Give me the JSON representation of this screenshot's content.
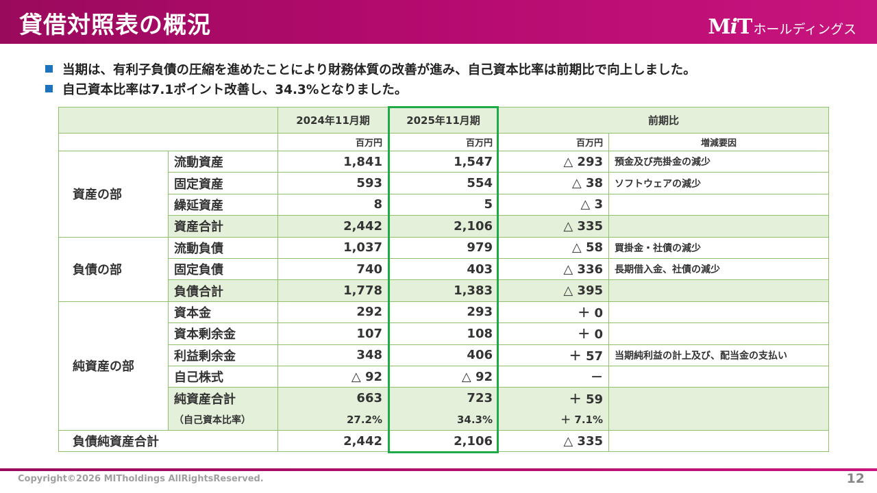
{
  "header": {
    "title": "貸借対照表の概況"
  },
  "logo": {
    "mark_m": "M",
    "mark_i": "i",
    "mark_t": "T",
    "rest": "ホールディングス"
  },
  "bullets": [
    "当期は、有利子負債の圧縮を進めたことにより財務体質の改善が進み、自己資本比率は前期比で向上しました。",
    "自己資本比率は7.1ポイント改善し、34.3%となりました。"
  ],
  "table": {
    "headers": {
      "prev": "2024年11月期",
      "curr": "2025年11月期",
      "diff": "前期比"
    },
    "units": {
      "prev": "百万円",
      "curr": "百万円",
      "diff": "百万円",
      "reason": "増減要因"
    },
    "sections": {
      "assets": "資産の部",
      "liabilities": "負債の部",
      "net_assets": "純資産の部",
      "total": "負債純資産合計"
    },
    "rows": [
      {
        "item": "流動資産",
        "prev": "1,841",
        "curr": "1,547",
        "diff": "△ 293",
        "reason": "預金及び売掛金の減少"
      },
      {
        "item": "固定資産",
        "prev": "593",
        "curr": "554",
        "diff": "△ 38",
        "reason": "ソフトウェアの減少"
      },
      {
        "item": "繰延資産",
        "prev": "8",
        "curr": "5",
        "diff": "△ 3",
        "reason": ""
      },
      {
        "item": "資産合計",
        "prev": "2,442",
        "curr": "2,106",
        "diff": "△ 335",
        "reason": ""
      },
      {
        "item": "流動負債",
        "prev": "1,037",
        "curr": "979",
        "diff": "△ 58",
        "reason": "買掛金・社債の減少"
      },
      {
        "item": "固定負債",
        "prev": "740",
        "curr": "403",
        "diff": "△ 336",
        "reason": "長期借入金、社債の減少"
      },
      {
        "item": "負債合計",
        "prev": "1,778",
        "curr": "1,383",
        "diff": "△ 395",
        "reason": ""
      },
      {
        "item": "資本金",
        "prev": "292",
        "curr": "293",
        "diff": "＋ 0",
        "reason": ""
      },
      {
        "item": "資本剰余金",
        "prev": "107",
        "curr": "108",
        "diff": "＋ 0",
        "reason": ""
      },
      {
        "item": "利益剰余金",
        "prev": "348",
        "curr": "406",
        "diff": "＋ 57",
        "reason": "当期純利益の計上及び、配当金の支払い"
      },
      {
        "item": "自己株式",
        "prev": "△ 92",
        "curr": "△ 92",
        "diff": "－",
        "reason": ""
      },
      {
        "item": "純資産合計",
        "prev": "663",
        "curr": "723",
        "diff": "＋ 59",
        "reason": ""
      },
      {
        "item": "（自己資本比率）",
        "prev": "27.2%",
        "curr": "34.3%",
        "diff": "＋ 7.1%",
        "reason": ""
      }
    ],
    "total_row": {
      "prev": "2,442",
      "curr": "2,106",
      "diff": "△ 335",
      "reason": ""
    }
  },
  "footer": {
    "copyright": "Copyright©2026 MITholdings AllRightsReserved.",
    "page": "12"
  },
  "colors": {
    "brand": "#b30a6e",
    "grid": "#8fc16c",
    "fill": "#e5f0da",
    "highlight": "#1faa4a",
    "bullet": "#1e73be"
  }
}
